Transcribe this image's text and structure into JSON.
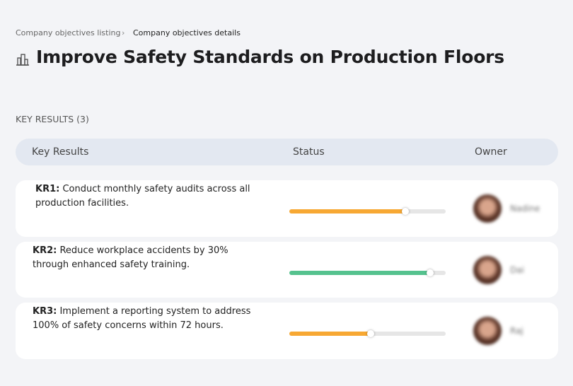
{
  "breadcrumb": {
    "items": [
      "Company objectives listing",
      "Company objectives details"
    ]
  },
  "title": "Improve Safety Standards on Production Floors",
  "section_label": "KEY RESULTS (3)",
  "table": {
    "columns": [
      "Key Results",
      "Status",
      "Owner"
    ],
    "progress_range": [
      0,
      100
    ],
    "rows": [
      {
        "id": "KR1:",
        "text": "Conduct monthly safety audits across all production facilities.",
        "progress": 74,
        "color": "#f7a833",
        "owner": "Nadine"
      },
      {
        "id": "KR2:",
        "text": "Reduce workplace accidents by 30% through enhanced safety training.",
        "progress": 90,
        "color": "#55c28e",
        "owner": "Dai"
      },
      {
        "id": "KR3:",
        "text": "Implement a reporting system to address 100% of safety concerns within 72 hours.",
        "progress": 52,
        "color": "#f7a833",
        "owner": "Raj"
      }
    ]
  }
}
